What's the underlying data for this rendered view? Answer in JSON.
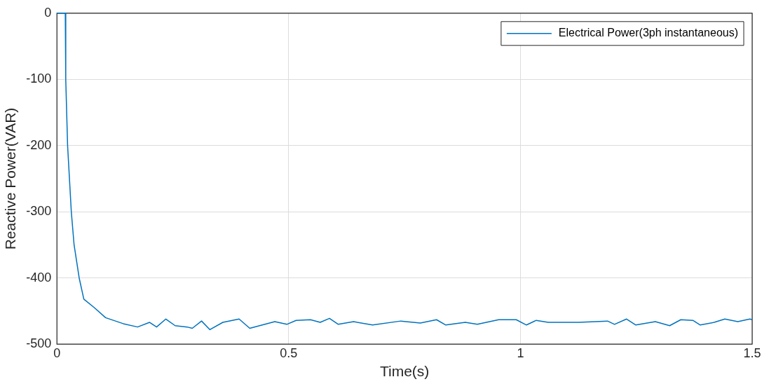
{
  "chart_data": {
    "type": "line",
    "xlabel": "Time(s)",
    "ylabel": "Reactive Power(VAR)",
    "series": [
      {
        "name": "Electrical Power(3ph instantaneous)",
        "color": "#0072bd",
        "x": [
          0,
          0.018,
          0.019,
          0.023,
          0.031,
          0.037,
          0.048,
          0.058,
          0.081,
          0.105,
          0.143,
          0.174,
          0.2,
          0.215,
          0.235,
          0.255,
          0.281,
          0.292,
          0.312,
          0.33,
          0.358,
          0.393,
          0.416,
          0.47,
          0.496,
          0.516,
          0.547,
          0.568,
          0.588,
          0.607,
          0.64,
          0.681,
          0.742,
          0.784,
          0.819,
          0.839,
          0.881,
          0.907,
          0.953,
          0.991,
          1.013,
          1.034,
          1.06,
          1.126,
          1.188,
          1.203,
          1.229,
          1.249,
          1.291,
          1.322,
          1.346,
          1.372,
          1.388,
          1.418,
          1.441,
          1.469,
          1.495,
          1.5
        ],
        "values": [
          0,
          0,
          -100,
          -200,
          -300,
          -350,
          -400,
          -432,
          -445,
          -460,
          -469,
          -474,
          -467,
          -474,
          -462,
          -472,
          -474,
          -476,
          -465,
          -478,
          -467,
          -462,
          -476,
          -466,
          -470,
          -464,
          -463,
          -467,
          -461,
          -470,
          -466,
          -471,
          -465,
          -468,
          -463,
          -471,
          -467,
          -470,
          -463,
          -463,
          -471,
          -464,
          -467,
          -467,
          -465,
          -470,
          -462,
          -471,
          -466,
          -472,
          -463,
          -464,
          -471,
          -467,
          -462,
          -466,
          -462,
          -463
        ]
      }
    ],
    "xlim": [
      0,
      1.5
    ],
    "xticks": [
      0,
      0.5,
      1,
      1.5
    ],
    "ylim": [
      -500,
      0
    ],
    "yticks": [
      -500,
      -400,
      -300,
      -200,
      -100,
      0
    ],
    "grid": true,
    "legend": "top right",
    "marker": "none",
    "line_style": "solid"
  }
}
